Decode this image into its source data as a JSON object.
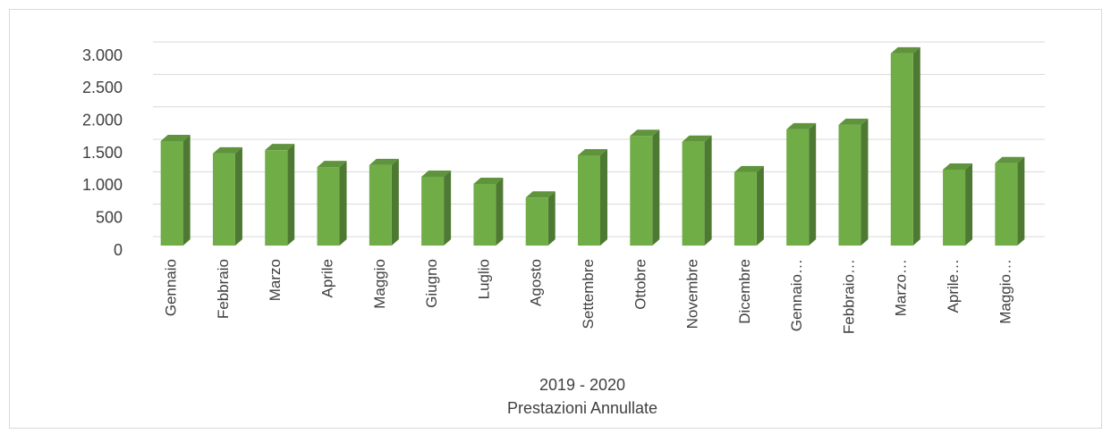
{
  "chart_data": {
    "type": "bar3d",
    "x_label": "2019 - 2020",
    "subtitle": "Prestazioni Annullate",
    "categories": [
      "Gennaio",
      "Febbraio",
      "Marzo",
      "Aprile",
      "Maggio",
      "Giugno",
      "Luglio",
      "Agosto",
      "Settembre",
      "Ottobre",
      "Novembre",
      "Dicembre",
      "Gennaio…",
      "Febbraio…",
      "Marzo…",
      "Aprile…",
      "Maggio…"
    ],
    "values": [
      1610,
      1420,
      1470,
      1210,
      1240,
      1060,
      950,
      740,
      1390,
      1690,
      1600,
      1130,
      1790,
      1860,
      2960,
      1170,
      1270
    ],
    "color": "#70ad47",
    "ylim": [
      0,
      3000
    ],
    "yticks": [
      0,
      500,
      {
        "value": 1000,
        "label": "1.000"
      },
      {
        "value": 1500,
        "label": "1.500"
      },
      {
        "value": 2000,
        "label": "2.000"
      },
      {
        "value": 2500,
        "label": "2.500"
      },
      {
        "value": 3000,
        "label": "3.000"
      }
    ],
    "grid": true
  }
}
